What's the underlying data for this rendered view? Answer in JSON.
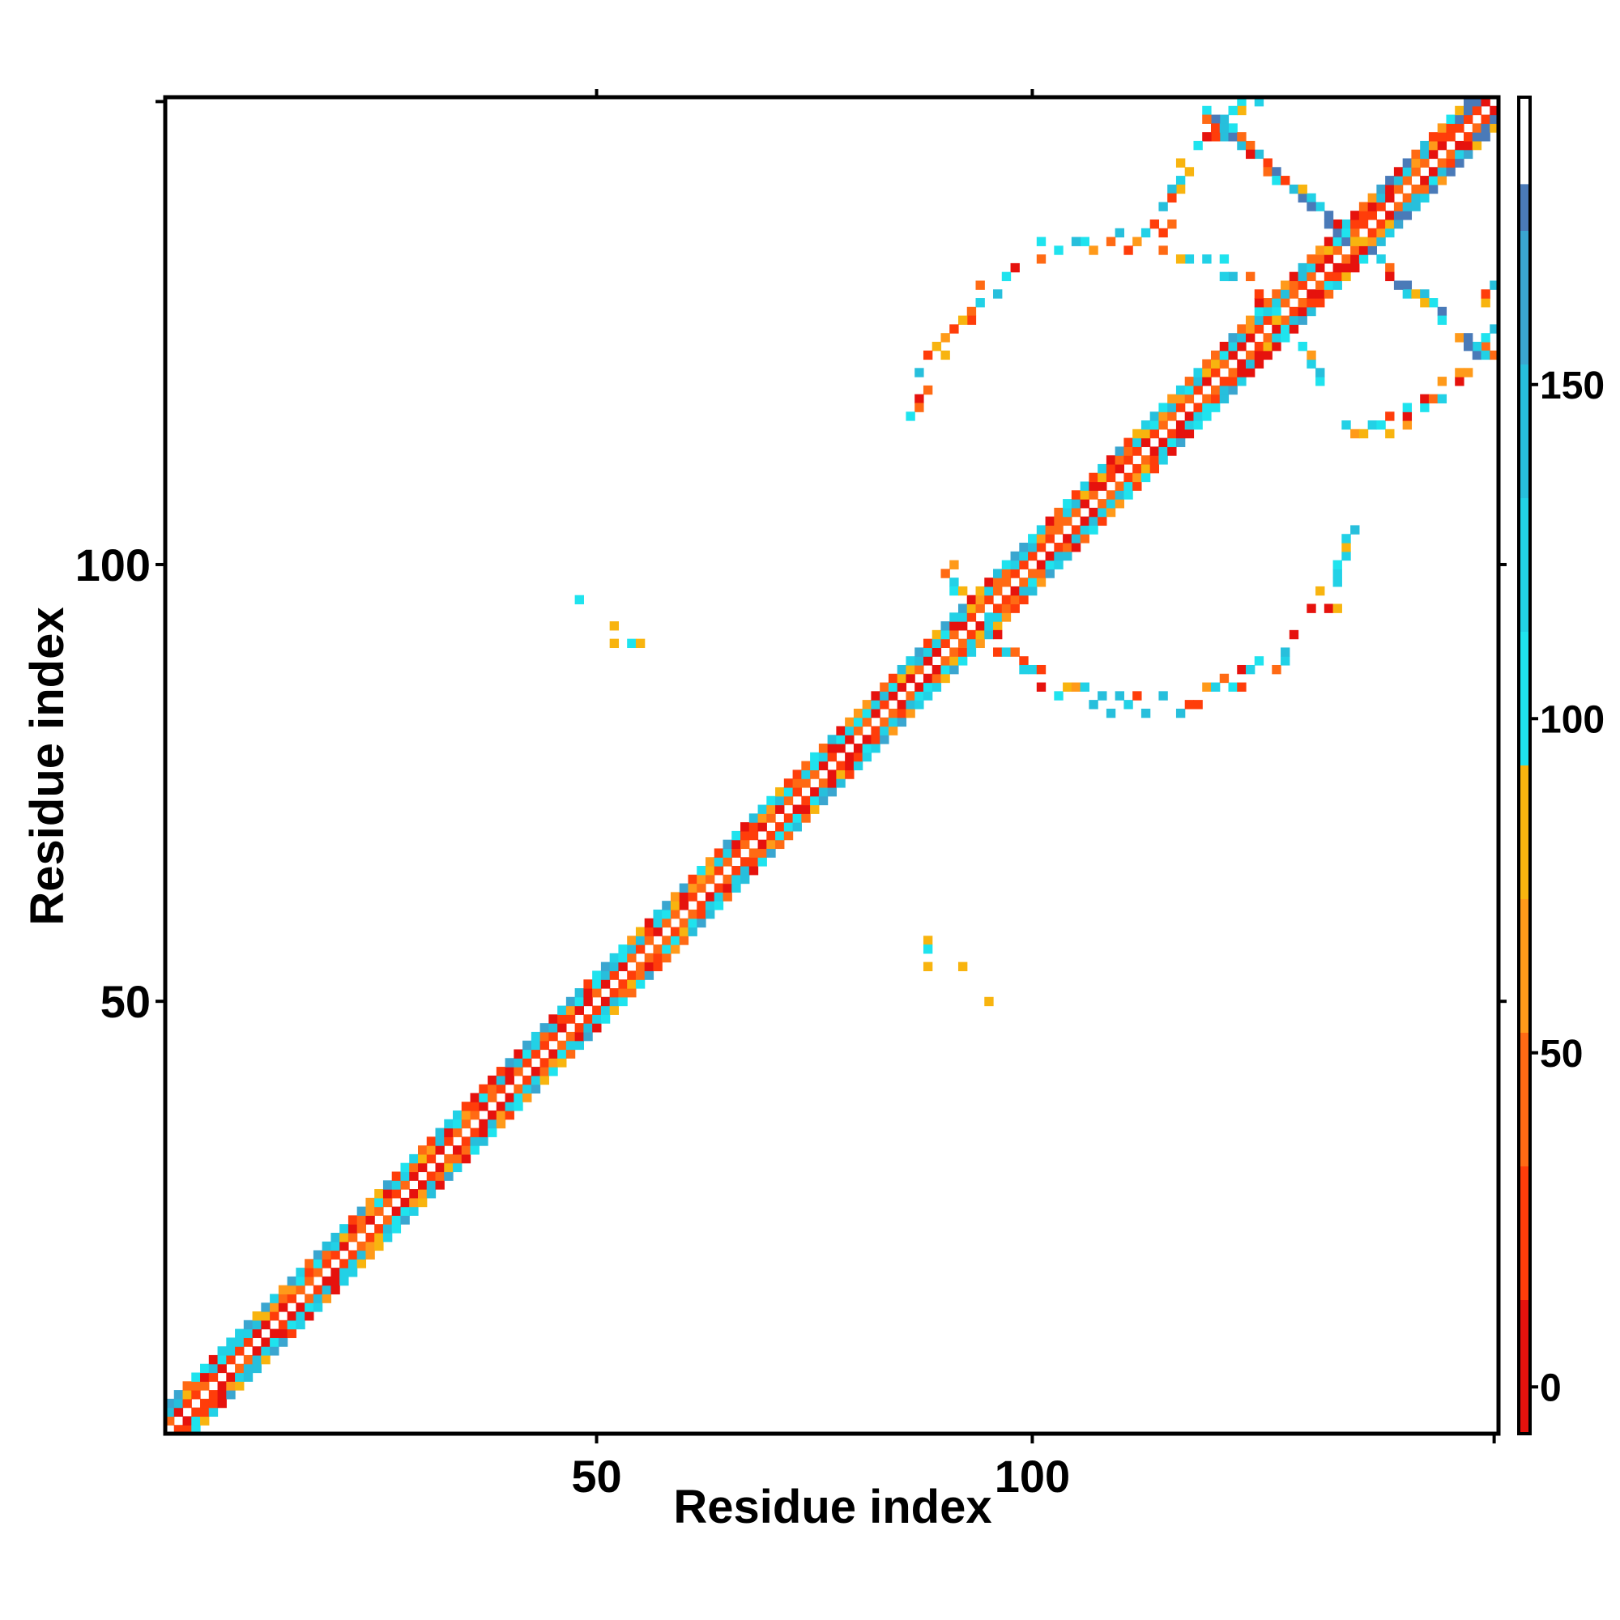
{
  "chart_data": {
    "type": "heatmap",
    "title": "",
    "xlabel": "Residue index",
    "ylabel": "Residue index",
    "xlim": [
      1,
      153
    ],
    "ylim": [
      1,
      153
    ],
    "x_ticks": [
      50,
      100
    ],
    "y_ticks": [
      50,
      100
    ],
    "grid": false,
    "colorbar": {
      "ticks": [
        0,
        50,
        100,
        150
      ],
      "range": [
        -7,
        193
      ],
      "segments": [
        {
          "from": -7,
          "to": 13,
          "color": "#e6120d"
        },
        {
          "from": 13,
          "to": 33,
          "color": "#ff3d0a"
        },
        {
          "from": 33,
          "to": 53,
          "color": "#ff6a14"
        },
        {
          "from": 53,
          "to": 73,
          "color": "#ff9a1a"
        },
        {
          "from": 73,
          "to": 93,
          "color": "#f8b40f"
        },
        {
          "from": 93,
          "to": 113,
          "color": "#1fe3ee"
        },
        {
          "from": 113,
          "to": 133,
          "color": "#22d1e6"
        },
        {
          "from": 133,
          "to": 153,
          "color": "#27bfdc"
        },
        {
          "from": 153,
          "to": 173,
          "color": "#3aa6d0"
        },
        {
          "from": 173,
          "to": 180,
          "color": "#4a7ab8"
        },
        {
          "from": 180,
          "to": 193,
          "color": "#ffffff"
        }
      ]
    },
    "cell_colors": [
      "#e6120d",
      "#ff3d0a",
      "#ff6a14",
      "#ff9a1a",
      "#f8b40f",
      "#1fe3ee",
      "#22d1e6",
      "#27bfdc",
      "#3aa6d0",
      "#4a7ab8"
    ],
    "contact_regions": [
      {
        "kind": "diagonal",
        "from": 1,
        "to": 153,
        "halfwidth": 3.5
      },
      {
        "kind": "cluster",
        "points": [
          [
            48,
            96
          ],
          [
            52,
            93
          ],
          [
            52,
            91
          ],
          [
            54,
            91
          ],
          [
            55,
            91
          ]
        ]
      },
      {
        "kind": "cluster",
        "points": [
          [
            88,
            57
          ],
          [
            88,
            56
          ],
          [
            88,
            54
          ],
          [
            92,
            54
          ],
          [
            95,
            50
          ]
        ]
      },
      {
        "kind": "arc",
        "center": [
          110,
          113
        ],
        "radius": 24,
        "from_deg": 20,
        "to_deg": 170
      },
      {
        "kind": "arc",
        "center": [
          113,
          108
        ],
        "radius": 24,
        "from_deg": 200,
        "to_deg": 350
      },
      {
        "kind": "arc",
        "center": [
          135,
          136
        ],
        "radius": 20,
        "from_deg": 95,
        "to_deg": 175
      },
      {
        "kind": "arc",
        "center": [
          134,
          135
        ],
        "radius": 20,
        "from_deg": 275,
        "to_deg": 355
      },
      {
        "kind": "cross",
        "from": [
          119,
          152
        ],
        "to": [
          155,
          121
        ]
      }
    ]
  }
}
